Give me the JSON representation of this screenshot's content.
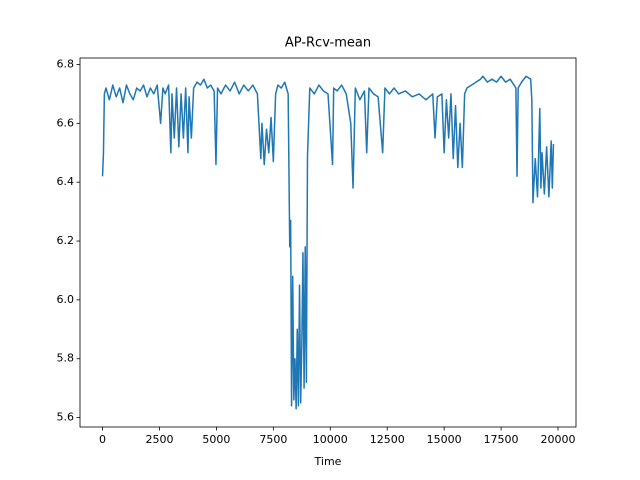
{
  "chart_data": {
    "type": "line",
    "title": "AP-Rcv-mean",
    "x_label": "Time",
    "xlim": [
      -990,
      20790
    ],
    "xticks": [
      0,
      2500,
      5000,
      7500,
      10000,
      12500,
      15000,
      17500,
      20000
    ],
    "ylim": [
      5.568,
      6.822
    ],
    "yticks": [
      5.6,
      5.8,
      {
        "value": 6,
        "label": "6.0"
      },
      6.2,
      6.4,
      6.6,
      6.8
    ],
    "grid": false,
    "x": [
      0,
      40,
      80,
      150,
      300,
      450,
      600,
      750,
      900,
      1050,
      1200,
      1350,
      1500,
      1650,
      1800,
      1950,
      2100,
      2250,
      2400,
      2550,
      2650,
      2750,
      2900,
      3000,
      3050,
      3150,
      3250,
      3350,
      3450,
      3550,
      3650,
      3750,
      3800,
      3900,
      4000,
      4150,
      4300,
      4450,
      4600,
      4750,
      4900,
      4980,
      5050,
      5200,
      5400,
      5600,
      5800,
      6000,
      6200,
      6400,
      6600,
      6800,
      6950,
      7000,
      7100,
      7200,
      7300,
      7400,
      7500,
      7600,
      7700,
      7850,
      8000,
      8150,
      8220,
      8260,
      8300,
      8350,
      8400,
      8450,
      8500,
      8550,
      8600,
      8650,
      8700,
      8750,
      8800,
      8850,
      8900,
      8950,
      9000,
      9100,
      9300,
      9500,
      9700,
      9900,
      10100,
      10150,
      10300,
      10500,
      10700,
      10900,
      11000,
      11100,
      11300,
      11500,
      11600,
      11700,
      11900,
      12100,
      12300,
      12400,
      12600,
      12800,
      13000,
      13300,
      13600,
      13900,
      14200,
      14500,
      14600,
      14700,
      14900,
      15000,
      15100,
      15200,
      15300,
      15400,
      15500,
      15600,
      15700,
      15800,
      15900,
      16000,
      16200,
      16400,
      16600,
      16700,
      16900,
      17100,
      17300,
      17500,
      17700,
      17900,
      18150,
      18200,
      18250,
      18400,
      18600,
      18800,
      18850,
      18900,
      19000,
      19100,
      19200,
      19250,
      19300,
      19400,
      19500,
      19600,
      19700,
      19750,
      19800
    ],
    "series": [
      {
        "name": "AP-Rcv-mean",
        "color": "#1f77b4",
        "values": [
          6.42,
          6.5,
          6.7,
          6.72,
          6.68,
          6.73,
          6.69,
          6.72,
          6.67,
          6.73,
          6.7,
          6.68,
          6.72,
          6.71,
          6.73,
          6.69,
          6.72,
          6.7,
          6.73,
          6.6,
          6.72,
          6.7,
          6.73,
          6.5,
          6.7,
          6.55,
          6.72,
          6.52,
          6.7,
          6.55,
          6.72,
          6.5,
          6.69,
          6.55,
          6.72,
          6.74,
          6.73,
          6.75,
          6.72,
          6.73,
          6.71,
          6.46,
          6.72,
          6.7,
          6.73,
          6.71,
          6.74,
          6.7,
          6.73,
          6.71,
          6.73,
          6.7,
          6.48,
          6.6,
          6.46,
          6.58,
          6.5,
          6.62,
          6.47,
          6.7,
          6.73,
          6.72,
          6.74,
          6.7,
          6.18,
          6.27,
          5.64,
          6.08,
          5.66,
          5.8,
          5.63,
          5.9,
          5.64,
          6.05,
          5.65,
          5.85,
          6.16,
          5.7,
          6.18,
          5.72,
          6.49,
          6.72,
          6.7,
          6.73,
          6.71,
          6.7,
          6.46,
          6.72,
          6.71,
          6.73,
          6.7,
          6.6,
          6.38,
          6.72,
          6.68,
          6.71,
          6.5,
          6.72,
          6.7,
          6.69,
          6.5,
          6.72,
          6.7,
          6.72,
          6.7,
          6.71,
          6.69,
          6.7,
          6.68,
          6.7,
          6.55,
          6.69,
          6.7,
          6.5,
          6.68,
          6.55,
          6.7,
          6.48,
          6.66,
          6.45,
          6.6,
          6.45,
          6.7,
          6.72,
          6.73,
          6.74,
          6.75,
          6.76,
          6.74,
          6.75,
          6.74,
          6.76,
          6.74,
          6.75,
          6.72,
          6.42,
          6.72,
          6.74,
          6.76,
          6.75,
          6.68,
          6.33,
          6.48,
          6.35,
          6.65,
          6.38,
          6.5,
          6.36,
          6.52,
          6.35,
          6.54,
          6.38,
          6.53
        ]
      }
    ]
  }
}
